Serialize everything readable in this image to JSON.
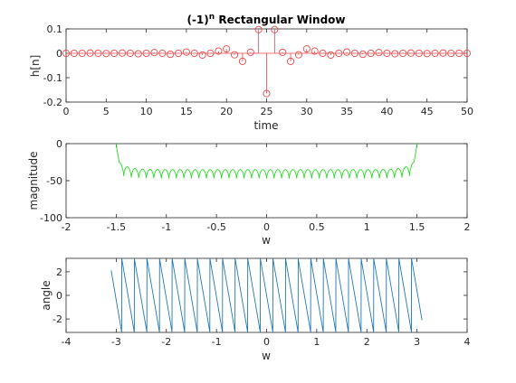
{
  "colors": {
    "stem": "#e8484a",
    "magnitude": "#22dd22",
    "angle": "#1f78b4",
    "axis": "#262626"
  },
  "chart_data": [
    {
      "type": "stem",
      "title_main": "(-1)",
      "title_sup": "n",
      "title_rest": " Rectangular Window",
      "xlabel": "time",
      "ylabel": "h[n]",
      "xlim": [
        0,
        50
      ],
      "ylim": [
        -0.2,
        0.1
      ],
      "xticks": [
        0,
        5,
        10,
        15,
        20,
        25,
        30,
        35,
        40,
        45,
        50
      ],
      "xtick_labels": [
        "0",
        "5",
        "10",
        "15",
        "20",
        "25",
        "30",
        "35",
        "40",
        "45",
        "50"
      ],
      "yticks": [
        -0.2,
        -0.1,
        0,
        0.1
      ],
      "ytick_labels": [
        "-0.2",
        "-0.1",
        "0",
        "0.1"
      ],
      "n": [
        0,
        1,
        2,
        3,
        4,
        5,
        6,
        7,
        8,
        9,
        10,
        11,
        12,
        13,
        14,
        15,
        16,
        17,
        18,
        19,
        20,
        21,
        22,
        23,
        24,
        25,
        26,
        27,
        28,
        29,
        30,
        31,
        32,
        33,
        34,
        35,
        36,
        37,
        38,
        39,
        40,
        41,
        42,
        43,
        44,
        45,
        46,
        47,
        48,
        49,
        50
      ],
      "h": [
        0,
        0,
        0,
        0.001,
        0,
        -0.001,
        0,
        0.001,
        0,
        -0.002,
        0,
        0.003,
        0,
        -0.004,
        0,
        0.005,
        0,
        -0.007,
        0,
        0.009,
        0.018,
        -0.006,
        -0.033,
        0.004,
        0.097,
        -0.165,
        0.097,
        0.004,
        -0.033,
        -0.006,
        0.018,
        0.009,
        0,
        -0.007,
        0,
        0.005,
        0,
        -0.004,
        0,
        0.003,
        0,
        -0.002,
        0,
        0.001,
        0,
        -0.001,
        0,
        0.001,
        0,
        0,
        0
      ]
    },
    {
      "type": "line",
      "xlabel": "w",
      "ylabel": "magnitude",
      "xlim": [
        -2,
        2
      ],
      "ylim": [
        -100,
        0
      ],
      "xticks": [
        -2,
        -1.5,
        -1,
        -0.5,
        0,
        0.5,
        1,
        1.5,
        2
      ],
      "xtick_labels": [
        "-2",
        "-1.5",
        "-1",
        "-0.5",
        "0",
        "0.5",
        "1",
        "1.5",
        "2"
      ],
      "yticks": [
        -100,
        -50,
        0
      ],
      "ytick_labels": [
        "-100",
        "-50",
        "0"
      ],
      "band_edge": 1.5,
      "lobe_count": 40,
      "lobe_peak_db": -35,
      "null_depth_db": -47,
      "edge_peak_db": -20
    },
    {
      "type": "line",
      "xlabel": "w",
      "ylabel": "angle",
      "xlim": [
        -4,
        4
      ],
      "ylim": [
        -3.14159,
        3.14159
      ],
      "xticks": [
        -4,
        -3,
        -2,
        -1,
        0,
        1,
        2,
        3,
        4
      ],
      "xtick_labels": [
        "-4",
        "-3",
        "-2",
        "-1",
        "0",
        "1",
        "2",
        "3",
        "4"
      ],
      "yticks": [
        -2,
        0,
        2
      ],
      "ytick_labels": [
        "-2",
        "0",
        "2"
      ],
      "w_range": [
        -3.1,
        3.1
      ],
      "phase_slope": -25
    }
  ]
}
